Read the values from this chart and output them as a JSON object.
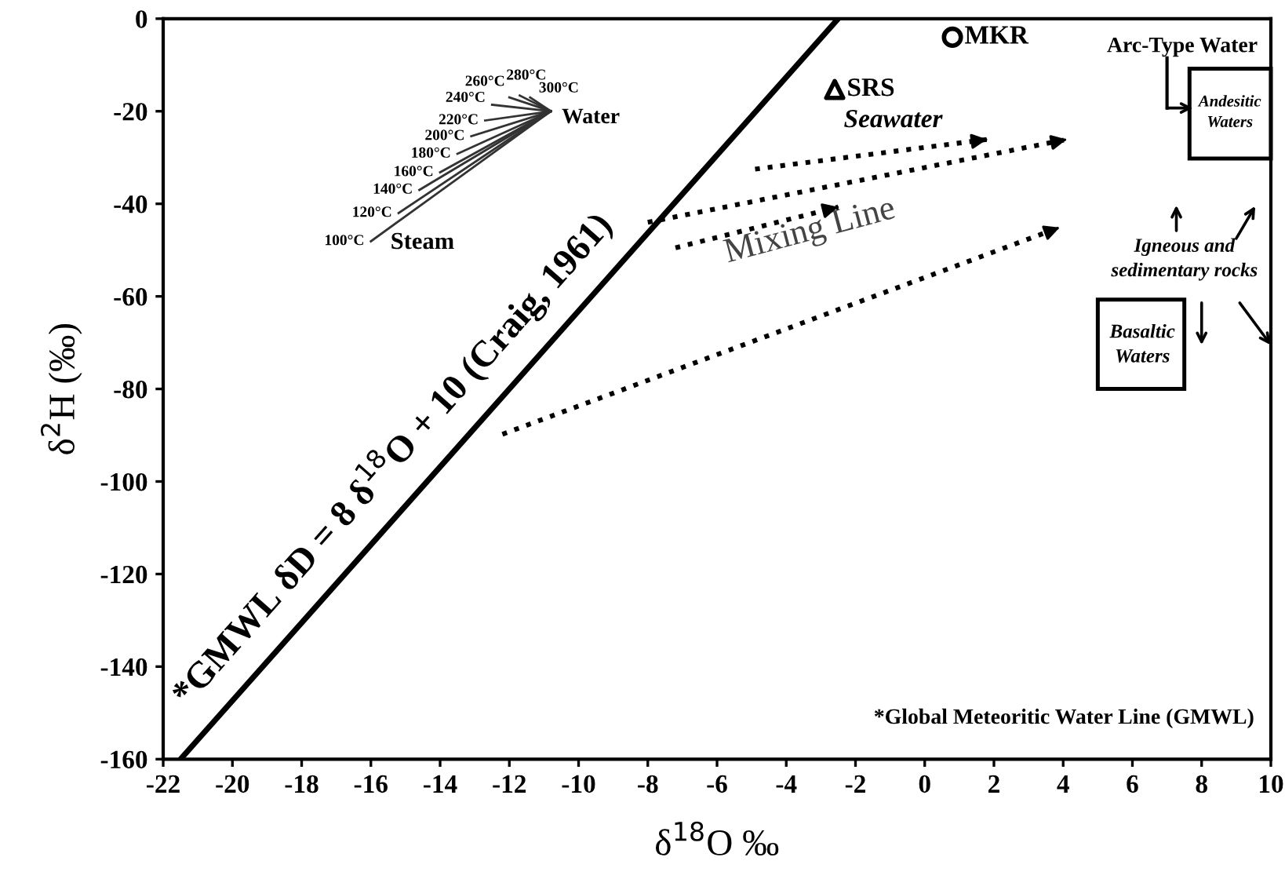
{
  "chart_data": {
    "type": "line",
    "xlabel": "δ$^{18}$O ‰",
    "ylabel": "δ$^{2}$H (‰)",
    "xlim": [
      -22,
      10
    ],
    "ylim": [
      -160,
      0
    ],
    "xticks": [
      -22,
      -20,
      -18,
      -16,
      -14,
      -12,
      -10,
      -8,
      -6,
      -4,
      -2,
      0,
      2,
      4,
      6,
      8,
      10
    ],
    "yticks": [
      -160,
      -140,
      -120,
      -100,
      -80,
      -60,
      -40,
      -20,
      0
    ],
    "grid": false,
    "series": [
      {
        "color": "#000000",
        "line_style": "solid",
        "x": [
          -21.5,
          -2.5
        ],
        "values": [
          -160,
          0
        ]
      },
      {
        "name": "100°C",
        "color": "#333333",
        "line_style": "solid",
        "x": [
          -16.0,
          -10.8
        ],
        "values": [
          -48.1,
          -20
        ]
      },
      {
        "name": "120°C",
        "color": "#333333",
        "line_style": "solid",
        "x": [
          -15.2,
          -10.8
        ],
        "values": [
          -42,
          -20
        ]
      },
      {
        "name": "140°C",
        "color": "#333333",
        "line_style": "solid",
        "x": [
          -14.6,
          -10.8
        ],
        "values": [
          -37,
          -20
        ]
      },
      {
        "name": "160°C",
        "color": "#333333",
        "line_style": "solid",
        "x": [
          -14.0,
          -10.8
        ],
        "values": [
          -33.2,
          -20
        ]
      },
      {
        "name": "180°C",
        "color": "#333333",
        "line_style": "solid",
        "x": [
          -13.5,
          -10.8
        ],
        "values": [
          -29.2,
          -20
        ]
      },
      {
        "name": "200°C",
        "color": "#333333",
        "line_style": "solid",
        "x": [
          -13.1,
          -10.8
        ],
        "values": [
          -25.4,
          -20
        ]
      },
      {
        "name": "220°C",
        "color": "#333333",
        "line_style": "solid",
        "x": [
          -12.7,
          -10.8
        ],
        "values": [
          -22,
          -20
        ]
      },
      {
        "name": "240°C",
        "color": "#333333",
        "line_style": "solid",
        "x": [
          -12.5,
          -10.8
        ],
        "values": [
          -18.6,
          -20
        ]
      },
      {
        "name": "260°C",
        "color": "#333333",
        "line_style": "solid",
        "x": [
          -12.0,
          -10.8
        ],
        "values": [
          -17,
          -20
        ]
      },
      {
        "name": "280°C",
        "color": "#333333",
        "line_style": "solid",
        "x": [
          -11.7,
          -10.8
        ],
        "values": [
          -16.6,
          -20
        ]
      },
      {
        "name": "300°C",
        "color": "#333333",
        "line_style": "solid",
        "x": [
          -11.4,
          -10.8
        ],
        "values": [
          -17,
          -20
        ]
      },
      {
        "type": "scatter",
        "name": "MKR",
        "color": "#000000",
        "marker": "circle",
        "x": [
          0.8
        ],
        "values": [
          -4
        ]
      },
      {
        "type": "scatter",
        "name": "SRS",
        "color": "#000000",
        "marker": "triangle",
        "x": [
          -2.6
        ],
        "values": [
          -15.3
        ]
      }
    ],
    "annotations": [
      "*GMWL δD = 8 δ$^{18}$O + 10 (Craig, 1961)",
      "Water",
      "Steam",
      "Mixing Line",
      "Seawater",
      "Arc-Type Water",
      "Andesitic\nWaters",
      "Igneous and\nsedimentary rocks",
      "Basaltic\nWaters",
      "*Global Meteoritic Water Line (GMWL)"
    ]
  }
}
